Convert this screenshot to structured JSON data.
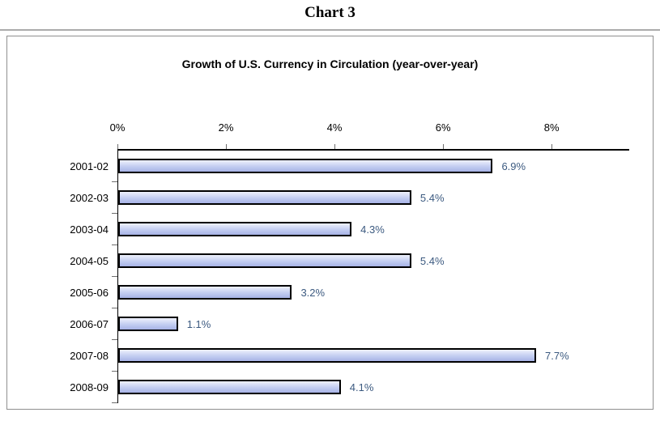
{
  "page": {
    "heading": "Chart 3"
  },
  "chart_data": {
    "type": "bar",
    "orientation": "horizontal",
    "title": "Growth of U.S. Currency in Circulation (year-over-year)",
    "categories": [
      "2001-02",
      "2002-03",
      "2003-04",
      "2004-05",
      "2005-06",
      "2006-07",
      "2007-08",
      "2008-09"
    ],
    "values": [
      6.9,
      5.4,
      4.3,
      5.4,
      3.2,
      1.1,
      7.7,
      4.1
    ],
    "value_labels": [
      "6.9%",
      "5.4%",
      "4.3%",
      "5.4%",
      "3.2%",
      "1.1%",
      "7.7%",
      "4.1%"
    ],
    "x_tick_values": [
      0,
      2,
      4,
      6,
      8
    ],
    "x_tick_labels": [
      "0%",
      "2%",
      "4%",
      "6%",
      "8%"
    ],
    "xlim": [
      0,
      9.43
    ],
    "xlabel": "",
    "ylabel": "",
    "grid": false,
    "legend": "none",
    "colors": {
      "bar_fill_top": "#eef1fc",
      "bar_fill_mid": "#c3cdf1",
      "bar_fill_bottom": "#a7b3e6",
      "bar_border": "#000000",
      "value_label": "#3c5a80",
      "axis": "#000000",
      "frame_border": "#8f8f8f",
      "heading_rule": "#ababab"
    }
  }
}
